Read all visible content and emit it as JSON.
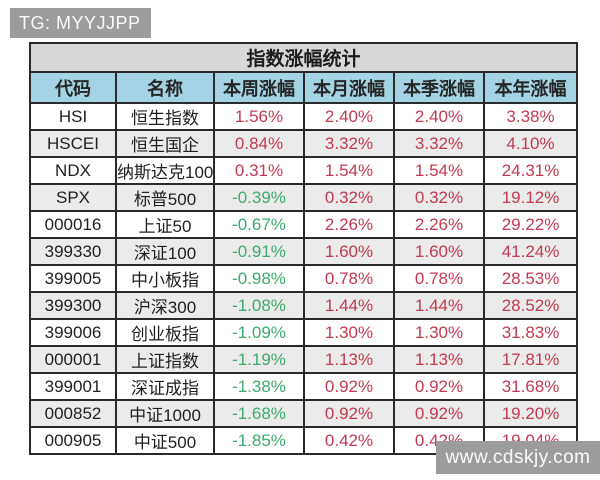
{
  "badges": {
    "tg": "TG: MYYJJPP",
    "site": "www.cdskjy.com"
  },
  "table": {
    "title": "指数涨幅统计",
    "columns": [
      "代码",
      "名称",
      "本周涨幅",
      "本月涨幅",
      "本季涨幅",
      "本年涨幅"
    ],
    "rows": [
      {
        "code": "HSI",
        "name": "恒生指数",
        "week": "1.56%",
        "month": "2.40%",
        "quarter": "2.40%",
        "year": "3.38%"
      },
      {
        "code": "HSCEI",
        "name": "恒生国企",
        "week": "0.84%",
        "month": "3.32%",
        "quarter": "3.32%",
        "year": "4.10%"
      },
      {
        "code": "NDX",
        "name": "纳斯达克100",
        "week": "0.31%",
        "month": "1.54%",
        "quarter": "1.54%",
        "year": "24.31%"
      },
      {
        "code": "SPX",
        "name": "标普500",
        "week": "-0.39%",
        "month": "0.32%",
        "quarter": "0.32%",
        "year": "19.12%"
      },
      {
        "code": "000016",
        "name": "上证50",
        "week": "-0.67%",
        "month": "2.26%",
        "quarter": "2.26%",
        "year": "29.22%"
      },
      {
        "code": "399330",
        "name": "深证100",
        "week": "-0.91%",
        "month": "1.60%",
        "quarter": "1.60%",
        "year": "41.24%"
      },
      {
        "code": "399005",
        "name": "中小板指",
        "week": "-0.98%",
        "month": "0.78%",
        "quarter": "0.78%",
        "year": "28.53%"
      },
      {
        "code": "399300",
        "name": "沪深300",
        "week": "-1.08%",
        "month": "1.44%",
        "quarter": "1.44%",
        "year": "28.52%"
      },
      {
        "code": "399006",
        "name": "创业板指",
        "week": "-1.09%",
        "month": "1.30%",
        "quarter": "1.30%",
        "year": "31.83%"
      },
      {
        "code": "000001",
        "name": "上证指数",
        "week": "-1.19%",
        "month": "1.13%",
        "quarter": "1.13%",
        "year": "17.81%"
      },
      {
        "code": "399001",
        "name": "深证成指",
        "week": "-1.38%",
        "month": "0.92%",
        "quarter": "0.92%",
        "year": "31.68%"
      },
      {
        "code": "000852",
        "name": "中证1000",
        "week": "-1.68%",
        "month": "0.92%",
        "quarter": "0.92%",
        "year": "19.20%"
      },
      {
        "code": "000905",
        "name": "中证500",
        "week": "-1.85%",
        "month": "0.42%",
        "quarter": "0.42%",
        "year": "19.04%"
      }
    ]
  },
  "colors": {
    "positive": "#c23a50",
    "negative": "#3cab6d",
    "header_bg": "#a4d3e3",
    "title_bg": "#d8d8d8",
    "stripe_bg": "#ebebeb",
    "badge_bg": "#9c9c9c",
    "border": "#2a2a2a"
  }
}
